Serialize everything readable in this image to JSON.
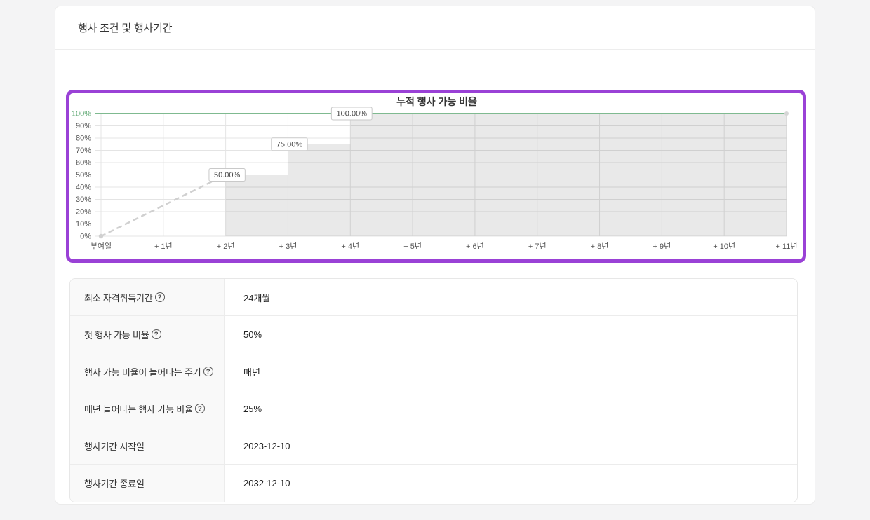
{
  "header": {
    "title": "행사 조건 및 행사기간"
  },
  "icons": {
    "help": "?"
  },
  "colors": {
    "chart_border": "#9a41d6",
    "full_vest_green": "#55a36b",
    "area_fill": "rgba(0,0,0,0.085)",
    "gridline": "#e4e4e4",
    "dashed_line": "#d0d0d0",
    "axis_text": "#555555",
    "label_box_border": "#c9c9c9",
    "label_text": "#444444",
    "title_text": "#333333"
  },
  "chart_data": {
    "type": "area",
    "title": "누적 행사 가능 비율",
    "x_ticks": [
      "부여일",
      "+ 1년",
      "+ 2년",
      "+ 3년",
      "+ 4년",
      "+ 5년",
      "+ 6년",
      "+ 7년",
      "+ 8년",
      "+ 9년",
      "+ 10년",
      "+ 11년"
    ],
    "y_tick_labels": [
      "100%",
      "90%",
      "80%",
      "70%",
      "60%",
      "50%",
      "40%",
      "30%",
      "20%",
      "10%",
      "0%"
    ],
    "xlim": [
      0,
      11
    ],
    "ylim": [
      0,
      100
    ],
    "grid": true,
    "legend": "none",
    "series": [
      {
        "name": "vesting-ramp",
        "type": "dashed-line",
        "points": [
          [
            0,
            0
          ],
          [
            2,
            50
          ]
        ]
      },
      {
        "name": "cumulative-exercisable-ratio",
        "type": "step-area",
        "points": [
          [
            2,
            50
          ],
          [
            3,
            50
          ],
          [
            3,
            75
          ],
          [
            4,
            75
          ],
          [
            4,
            100
          ],
          [
            11,
            100
          ]
        ]
      }
    ],
    "reference_line": {
      "y": 100
    },
    "point_labels": [
      {
        "x": 2,
        "y": 50,
        "text": "50.00%"
      },
      {
        "x": 3,
        "y": 75,
        "text": "75.00%"
      },
      {
        "x": 4,
        "y": 100,
        "text": "100.00%"
      }
    ]
  },
  "table": {
    "rows": [
      {
        "label": "최소 자격취득기간",
        "value": "24개월"
      },
      {
        "label": "첫 행사 가능 비율",
        "value": "50%"
      },
      {
        "label": "행사 가능 비율이 늘어나는 주기",
        "value": "매년"
      },
      {
        "label": "매년 늘어나는 행사 가능 비율",
        "value": "25%"
      },
      {
        "label": "행사기간 시작일",
        "value": "2023-12-10"
      },
      {
        "label": "행사기간 종료일",
        "value": "2032-12-10"
      }
    ]
  }
}
